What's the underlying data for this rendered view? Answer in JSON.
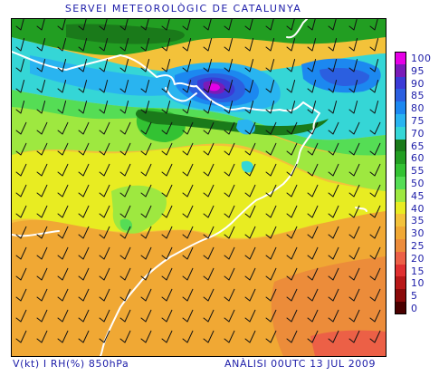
{
  "header": {
    "title": "SERVEI METEOROLÒGIC DE CATALUNYA"
  },
  "footer": {
    "left": "V(kt) I RH(%) 850hPa",
    "right": "ANÀLISI 00UTC 13 JUL 2009"
  },
  "legend": {
    "items": [
      {
        "label": "100",
        "color": "#e600e6"
      },
      {
        "label": "95",
        "color": "#7a1bb8"
      },
      {
        "label": "90",
        "color": "#3b3bd6"
      },
      {
        "label": "85",
        "color": "#2b5fe0"
      },
      {
        "label": "80",
        "color": "#1c88f0"
      },
      {
        "label": "75",
        "color": "#29b4f0"
      },
      {
        "label": "70",
        "color": "#35d6d6"
      },
      {
        "label": "65",
        "color": "#1a7a1a"
      },
      {
        "label": "60",
        "color": "#229e22"
      },
      {
        "label": "55",
        "color": "#33c233"
      },
      {
        "label": "50",
        "color": "#55dd55"
      },
      {
        "label": "45",
        "color": "#9ee840"
      },
      {
        "label": "40",
        "color": "#e8ec22"
      },
      {
        "label": "35",
        "color": "#f3c23a"
      },
      {
        "label": "30",
        "color": "#f0a834"
      },
      {
        "label": "25",
        "color": "#ec8c3a"
      },
      {
        "label": "20",
        "color": "#ec6046"
      },
      {
        "label": "15",
        "color": "#e03030"
      },
      {
        "label": "10",
        "color": "#b81818"
      },
      {
        "label": "5",
        "color": "#8a0a0a"
      },
      {
        "label": "0",
        "color": "#4a0000"
      }
    ]
  }
}
